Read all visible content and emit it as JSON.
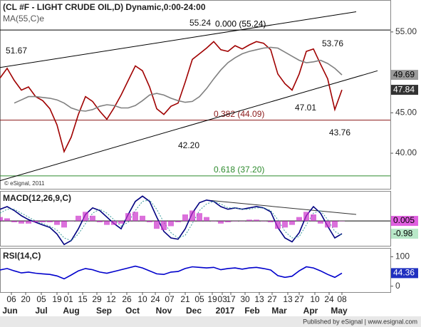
{
  "chart_data": [
    {
      "type": "line",
      "title": "(CL #F - LIGHT CRUDE OIL,D) Dynamic,0:00-24:00",
      "subtitle": "MA(55,C)e",
      "credit": "© eSignal, 2011",
      "footer": "Published by eSignal | www.esignal.com",
      "x": [
        0,
        5,
        10,
        15,
        20,
        25,
        30,
        35,
        40,
        45,
        50,
        55,
        60,
        65,
        70,
        75,
        80,
        85,
        90,
        95,
        100,
        105,
        110,
        115,
        120,
        125,
        130,
        135,
        140,
        145,
        150,
        155,
        160,
        165,
        170,
        175,
        180,
        185,
        190,
        195,
        200,
        205,
        210,
        215,
        220,
        225,
        230,
        235,
        240
      ],
      "xlim": [
        0,
        274
      ],
      "xticks": [
        {
          "value": 8,
          "label": "06"
        },
        {
          "value": 18,
          "label": "20"
        },
        {
          "value": 29,
          "label": "05"
        },
        {
          "value": 40,
          "label": "19"
        },
        {
          "value": 48,
          "label": "01"
        },
        {
          "value": 58,
          "label": "15"
        },
        {
          "value": 68,
          "label": "29"
        },
        {
          "value": 78,
          "label": "12"
        },
        {
          "value": 89,
          "label": "26"
        },
        {
          "value": 100,
          "label": "10"
        },
        {
          "value": 109,
          "label": "24"
        },
        {
          "value": 119,
          "label": "07"
        },
        {
          "value": 130,
          "label": "21"
        },
        {
          "value": 140,
          "label": "05"
        },
        {
          "value": 149,
          "label": "19"
        },
        {
          "value": 156,
          "label": "03"
        },
        {
          "value": 162,
          "label": "17"
        },
        {
          "value": 172,
          "label": "30"
        },
        {
          "value": 182,
          "label": "13"
        },
        {
          "value": 191,
          "label": "27"
        },
        {
          "value": 202,
          "label": "13"
        },
        {
          "value": 210,
          "label": "27"
        },
        {
          "value": 221,
          "label": "10"
        },
        {
          "value": 231,
          "label": "24"
        },
        {
          "value": 240,
          "label": "08"
        }
      ],
      "month_ticks": [
        {
          "value": 7,
          "label": "Jun"
        },
        {
          "value": 29,
          "label": "Jul"
        },
        {
          "value": 50,
          "label": "Aug"
        },
        {
          "value": 73,
          "label": "Sep"
        },
        {
          "value": 93,
          "label": "Oct"
        },
        {
          "value": 115,
          "label": "Nov"
        },
        {
          "value": 136,
          "label": "Dec"
        },
        {
          "value": 158,
          "label": "2017"
        },
        {
          "value": 177,
          "label": "Feb"
        },
        {
          "value": 196,
          "label": "Mar"
        },
        {
          "value": 218,
          "label": "Apr"
        },
        {
          "value": 238,
          "label": "May"
        }
      ],
      "ylim": [
        35.6,
        58.95
      ],
      "yticks": [
        {
          "value": 40,
          "label": "40.00"
        },
        {
          "value": 45,
          "label": "45.00"
        },
        {
          "value": 55,
          "label": "55.00"
        }
      ],
      "series": [
        {
          "name": "CL #F",
          "color": "#a00000",
          "last_label": "47.84",
          "values": [
            49.3,
            50.5,
            49.0,
            47.8,
            48.2,
            47.0,
            46.5,
            45.5,
            43.5,
            40.2,
            42.0,
            44.8,
            47.0,
            46.4,
            45.2,
            44.2,
            45.6,
            47.2,
            49.0,
            50.8,
            50.2,
            48.2,
            45.5,
            44.8,
            45.8,
            46.2,
            48.8,
            51.6,
            52.3,
            53.0,
            53.8,
            52.8,
            52.6,
            53.3,
            52.9,
            53.4,
            53.8,
            53.6,
            52.8,
            49.8,
            48.6,
            47.8,
            49.8,
            52.6,
            52.9,
            51.0,
            49.2,
            45.4,
            47.84
          ]
        },
        {
          "name": "MA(55,C)e",
          "color": "#808080",
          "last_label": "49.69",
          "values": [
            null,
            null,
            46.2,
            46.6,
            47.0,
            47.0,
            46.9,
            46.8,
            46.6,
            46.2,
            45.6,
            45.3,
            45.2,
            45.4,
            45.8,
            46.0,
            45.9,
            45.6,
            45.6,
            45.9,
            46.5,
            47.2,
            47.4,
            47.2,
            46.8,
            46.5,
            46.3,
            46.4,
            47.0,
            48.0,
            49.2,
            50.3,
            51.2,
            51.8,
            52.3,
            52.6,
            52.8,
            53.0,
            53.1,
            53.0,
            52.5,
            52.0,
            51.5,
            51.2,
            51.3,
            51.5,
            51.1,
            50.5,
            49.69
          ]
        }
      ],
      "levels": [
        {
          "label": "0.000 (55.24)",
          "value": 55.24,
          "color": "#000000"
        },
        {
          "label": "0.382 (44.09)",
          "value": 44.09,
          "color": "#8b1a1a"
        },
        {
          "label": "0.618 (37.20)",
          "value": 37.2,
          "color": "#2e8b2e"
        }
      ],
      "trendlines": [
        {
          "x": [
            0,
            250
          ],
          "y": [
            50.6,
            57.5
          ]
        },
        {
          "x": [
            0,
            265
          ],
          "y": [
            36.6,
            50.2
          ]
        }
      ],
      "annotations": [
        "51.67",
        "55.24",
        "53.76",
        "47.01",
        "42.20",
        "43.76"
      ]
    },
    {
      "type": "line",
      "title": "MACD(12,26,9,C)",
      "ylim": [
        -1.9,
        2.3
      ],
      "zero_line": 0,
      "trendline": {
        "x": [
          145,
          250
        ],
        "y": [
          1.6,
          0.5
        ]
      },
      "series": [
        {
          "name": "MACD",
          "color": "#000080",
          "style": "solid",
          "last_label": "-0.98",
          "values": [
            0.9,
            1.1,
            0.8,
            0.4,
            0.1,
            -0.1,
            -0.3,
            -0.5,
            -1.0,
            -1.8,
            -1.5,
            -0.6,
            0.5,
            1.0,
            0.8,
            0.3,
            -0.2,
            -0.6,
            0.5,
            1.5,
            1.9,
            1.5,
            0.3,
            -0.8,
            -1.3,
            -1.4,
            -0.6,
            0.6,
            1.4,
            1.6,
            1.5,
            1.1,
            0.9,
            1.0,
            0.9,
            1.0,
            1.1,
            1.0,
            0.7,
            -0.5,
            -1.3,
            -1.6,
            -0.9,
            0.4,
            1.1,
            0.6,
            -0.4,
            -1.3,
            -0.98
          ]
        },
        {
          "name": "Signal",
          "color": "#3a9a9a",
          "style": "dotted",
          "values": [
            0.6,
            0.9,
            0.9,
            0.6,
            0.3,
            0.0,
            -0.2,
            -0.4,
            -0.7,
            -1.3,
            -1.5,
            -1.0,
            -0.2,
            0.6,
            0.9,
            0.6,
            0.1,
            -0.4,
            -0.1,
            0.8,
            1.5,
            1.6,
            0.9,
            -0.1,
            -0.9,
            -1.3,
            -1.1,
            -0.2,
            0.8,
            1.3,
            1.5,
            1.3,
            1.0,
            1.0,
            0.9,
            0.9,
            1.0,
            1.0,
            0.8,
            0.1,
            -0.8,
            -1.3,
            -1.2,
            -0.3,
            0.6,
            0.8,
            0.1,
            -0.8,
            -1.1
          ]
        },
        {
          "name": "Histogram",
          "color": "#cc33cc",
          "style": "bar",
          "last_label": "0.005",
          "values": [
            0.3,
            0.2,
            -0.1,
            -0.2,
            -0.2,
            -0.1,
            -0.1,
            -0.1,
            -0.3,
            -0.5,
            0.0,
            0.4,
            0.7,
            0.4,
            -0.1,
            -0.3,
            -0.3,
            -0.2,
            0.6,
            0.7,
            0.4,
            -0.1,
            -0.6,
            -0.7,
            -0.4,
            -0.1,
            0.5,
            0.8,
            0.6,
            0.3,
            0.0,
            -0.2,
            -0.1,
            0.0,
            0.0,
            0.1,
            0.1,
            0.0,
            -0.1,
            -0.6,
            -0.5,
            -0.3,
            0.3,
            0.7,
            0.5,
            -0.2,
            -0.5,
            -0.5,
            0.005
          ]
        }
      ]
    },
    {
      "type": "line",
      "title": "RSI(14,C)",
      "ylim": [
        -20,
        130
      ],
      "yticks": [
        0,
        100
      ],
      "series": [
        {
          "name": "RSI",
          "color": "#0000cc",
          "style": "solid",
          "last_label": "44.36",
          "values": [
            55,
            60,
            52,
            45,
            48,
            44,
            42,
            40,
            35,
            25,
            38,
            52,
            60,
            56,
            48,
            44,
            50,
            56,
            62,
            68,
            62,
            52,
            42,
            40,
            48,
            50,
            60,
            66,
            64,
            62,
            64,
            56,
            60,
            62,
            58,
            62,
            64,
            60,
            55,
            36,
            30,
            34,
            52,
            66,
            62,
            52,
            40,
            30,
            44.36
          ]
        }
      ]
    }
  ]
}
